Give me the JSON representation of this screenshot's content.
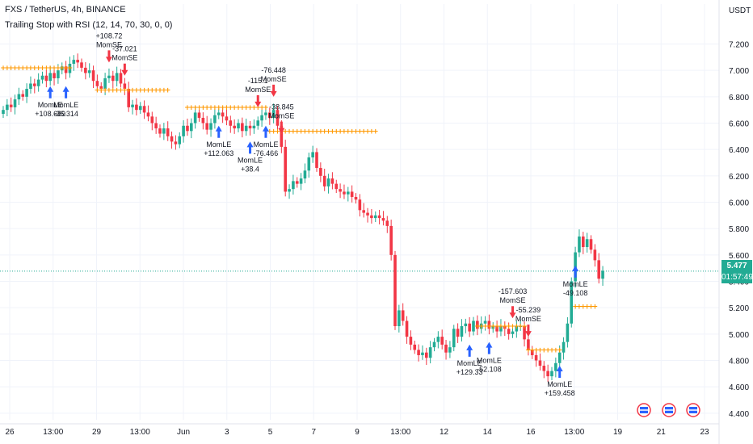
{
  "header": {
    "title": "FXS / TetherUS, 4h, BINANCE",
    "indicator": "Trailing Stop with RSI (12, 14, 70, 30, 0, 0)"
  },
  "price_axis": {
    "currency": "USDT",
    "current_price": "5.477",
    "countdown": "01:57:49"
  },
  "colors": {
    "up": "#22ab94",
    "down": "#f23645",
    "stop": "#ff9800",
    "long_arrow": "#2962ff",
    "short_arrow": "#f23645",
    "grid": "#f0f3fa",
    "text": "#131722",
    "current_line": "#22ab94"
  },
  "chart_data": {
    "type": "candlestick",
    "title": "FXS / TetherUS, 4h, BINANCE",
    "ylim": [
      4.35,
      7.35
    ],
    "y_ticks": [
      "4.400",
      "4.600",
      "4.800",
      "5.000",
      "5.200",
      "5.400",
      "5.600",
      "5.800",
      "6.000",
      "6.200",
      "6.400",
      "6.600",
      "6.800",
      "7.000",
      "7.200"
    ],
    "x_ticks": [
      "26",
      "13:00",
      "29",
      "13:00",
      "Jun",
      "3",
      "5",
      "7",
      "9",
      "13:00",
      "12",
      "14",
      "16",
      "13:00",
      "19",
      "21",
      "23"
    ],
    "grid": true,
    "closes": [
      6.7,
      6.74,
      6.72,
      6.78,
      6.82,
      6.8,
      6.86,
      6.9,
      6.88,
      6.93,
      6.96,
      6.92,
      6.98,
      6.94,
      7.0,
      7.03,
      6.98,
      7.05,
      7.08,
      7.06,
      7.02,
      6.98,
      7.0,
      6.92,
      6.88,
      6.86,
      6.94,
      6.96,
      6.92,
      6.98,
      6.9,
      6.86,
      6.72,
      6.74,
      6.7,
      6.73,
      6.68,
      6.65,
      6.6,
      6.56,
      6.52,
      6.56,
      6.5,
      6.46,
      6.44,
      6.5,
      6.58,
      6.54,
      6.6,
      6.68,
      6.64,
      6.6,
      6.55,
      6.6,
      6.66,
      6.68,
      6.65,
      6.62,
      6.58,
      6.56,
      6.6,
      6.54,
      6.58,
      6.56,
      6.58,
      6.62,
      6.66,
      6.68,
      6.64,
      6.7,
      6.58,
      6.42,
      6.08,
      6.1,
      6.16,
      6.14,
      6.18,
      6.24,
      6.34,
      6.38,
      6.26,
      6.2,
      6.12,
      6.18,
      6.14,
      6.1,
      6.08,
      6.06,
      6.08,
      6.04,
      6.02,
      5.94,
      5.92,
      5.9,
      5.88,
      5.9,
      5.88,
      5.86,
      5.82,
      5.6,
      5.06,
      5.18,
      5.1,
      4.98,
      4.92,
      4.88,
      4.84,
      4.86,
      4.82,
      4.9,
      4.94,
      4.98,
      4.92,
      4.86,
      4.9,
      5.04,
      4.98,
      5.06,
      5.08,
      5.02,
      5.1,
      5.04,
      5.08,
      5.1,
      5.04,
      5.06,
      5.02,
      5.06,
      5.04,
      5.0,
      5.02,
      5.06,
      5.06,
      4.96,
      4.88,
      4.84,
      4.8,
      4.76,
      4.72,
      4.68,
      4.72,
      4.78,
      4.86,
      4.94,
      5.08,
      5.4,
      5.62,
      5.74,
      5.66,
      5.72,
      5.64,
      5.56,
      5.42,
      5.48
    ],
    "trailing_stop": [
      {
        "from": 0,
        "to": 17,
        "value": 7.02
      },
      {
        "from": 24,
        "to": 42,
        "value": 6.85
      },
      {
        "from": 47,
        "to": 67,
        "value": 6.72
      },
      {
        "from": 68,
        "to": 95,
        "value": 6.54
      },
      {
        "from": 121,
        "to": 133,
        "value": 5.06
      },
      {
        "from": 134,
        "to": 142,
        "value": 4.88
      },
      {
        "from": 146,
        "to": 151,
        "value": 5.21
      }
    ],
    "signals": [
      {
        "type": "long",
        "index": 12,
        "labels": [
          "MomLE",
          "+108.689"
        ]
      },
      {
        "type": "long",
        "index": 16,
        "labels": [
          "MomLE",
          "-36.314"
        ]
      },
      {
        "type": "short",
        "index": 27,
        "labels": [
          "+108.72",
          "MomSE"
        ]
      },
      {
        "type": "short",
        "index": 31,
        "labels": [
          "-37.021",
          "MomSE"
        ]
      },
      {
        "type": "long",
        "index": 55,
        "labels": [
          "MomLE",
          "+112.063"
        ]
      },
      {
        "type": "long",
        "index": 63,
        "labels": [
          "MomLE",
          "+38.4"
        ]
      },
      {
        "type": "long",
        "index": 67,
        "labels": [
          "MomLE",
          "-76.466"
        ]
      },
      {
        "type": "short",
        "index": 65,
        "labels": [
          "-115.1",
          "MomSE"
        ]
      },
      {
        "type": "short",
        "index": 69,
        "labels": [
          "-76.448",
          "MomSE"
        ]
      },
      {
        "type": "short",
        "index": 71,
        "labels": [
          "-38.845",
          "MomSE"
        ]
      },
      {
        "type": "long",
        "index": 119,
        "labels": [
          "MomLE",
          "+129.33"
        ]
      },
      {
        "type": "long",
        "index": 124,
        "labels": [
          "MomLE",
          "-52.108"
        ]
      },
      {
        "type": "short",
        "index": 130,
        "labels": [
          "-157.603",
          "MomSE"
        ]
      },
      {
        "type": "short",
        "index": 134,
        "labels": [
          "-55.239",
          "MomSE"
        ]
      },
      {
        "type": "long",
        "index": 142,
        "labels": [
          "MomLE",
          "+159.458"
        ]
      },
      {
        "type": "long",
        "index": 146,
        "labels": [
          "MomLE",
          "-49.108"
        ]
      }
    ]
  }
}
